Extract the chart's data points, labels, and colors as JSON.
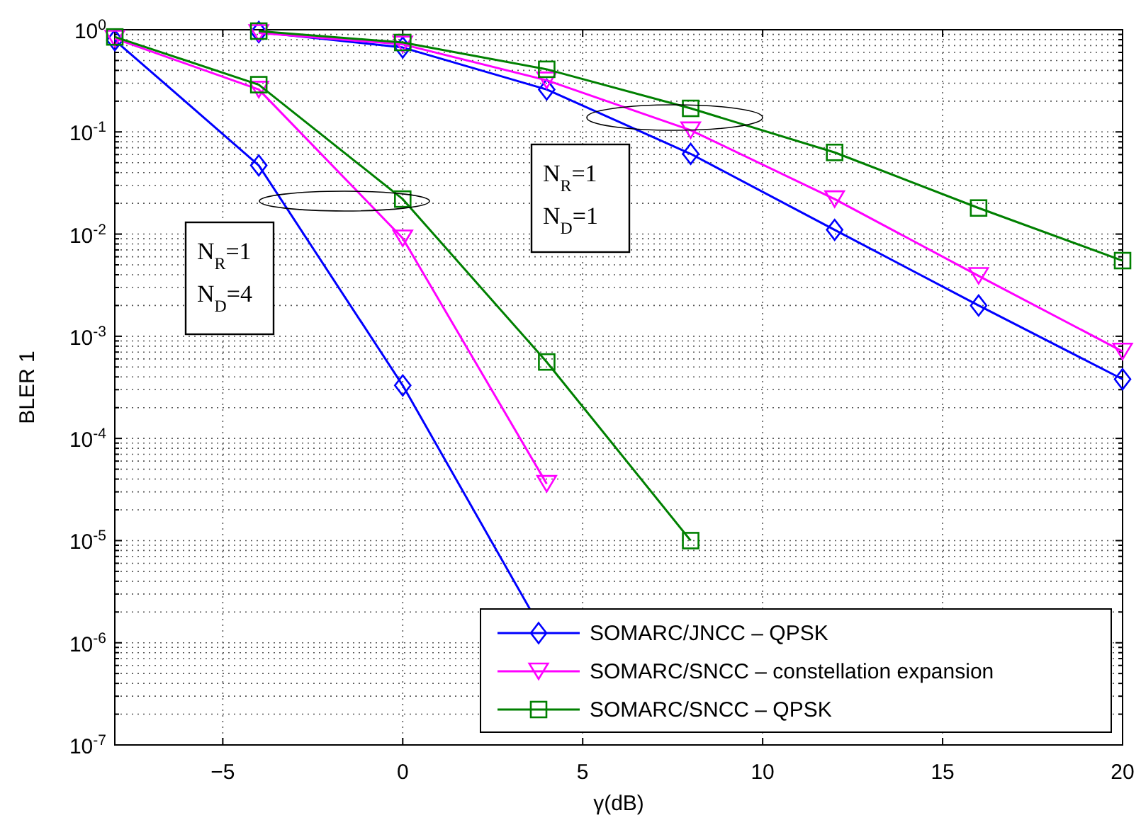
{
  "chart_data": {
    "type": "line",
    "xlabel": "γ(dB)",
    "ylabel": "BLER 1",
    "log": "y",
    "grid": true,
    "legend": "bottom right",
    "xlim": [
      -8,
      20
    ],
    "xticks": [
      -5,
      0,
      5,
      10,
      15,
      20
    ],
    "ylim": [
      1e-07,
      1
    ],
    "yticks": [
      {
        "value": 1e-07,
        "label": "10$^{-7}$"
      },
      {
        "value": 1e-06,
        "label": "10$^{-6}$"
      },
      {
        "value": 1e-05,
        "label": "10$^{-5}$"
      },
      {
        "value": 0.0001,
        "label": "10$^{-4}$"
      },
      {
        "value": 0.001,
        "label": "10$^{-3}$"
      },
      {
        "value": 0.01,
        "label": "10$^{-2}$"
      },
      {
        "value": 0.1,
        "label": "10$^{-1}$"
      },
      {
        "value": 1,
        "label": "10$^{0}$"
      }
    ],
    "annotations": [
      "N$_{R}$=1\nN$_{D}$=4",
      "N$_{R}$=1\nN$_{D}$=1"
    ],
    "series": [
      {
        "name": "SOMARC/JNCC – QPSK",
        "color": "#0000ff",
        "marker": "diamond",
        "x": [
          -8,
          -4,
          0,
          4
        ],
        "values": [
          0.79,
          0.047,
          0.00033,
          1.1e-06
        ]
      },
      {
        "name": "SOMARC/SNCC – constellation expansion",
        "color": "#ff00ff",
        "marker": "triangle",
        "x": [
          -8,
          -4,
          0,
          4
        ],
        "values": [
          0.82,
          0.26,
          0.0091,
          3.6e-05
        ]
      },
      {
        "name": "SOMARC/SNCC – QPSK",
        "color": "#008000",
        "marker": "square",
        "x": [
          -8,
          -4,
          0,
          4,
          8
        ],
        "values": [
          0.85,
          0.29,
          0.022,
          0.00056,
          1e-05
        ]
      },
      {
        "color": "#0000ff",
        "marker": "diamond",
        "x": [
          -4,
          0,
          4,
          8,
          12,
          16,
          20
        ],
        "values": [
          0.95,
          0.67,
          0.26,
          0.061,
          0.011,
          0.002,
          0.00038
        ]
      },
      {
        "color": "#ff00ff",
        "marker": "triangle",
        "x": [
          -4,
          0,
          4,
          8,
          12,
          16,
          20
        ],
        "values": [
          0.93,
          0.72,
          0.32,
          0.104,
          0.022,
          0.0039,
          0.00071
        ]
      },
      {
        "color": "#008000",
        "marker": "square",
        "x": [
          -4,
          0,
          4,
          8,
          12,
          16,
          20
        ],
        "values": [
          0.97,
          0.75,
          0.41,
          0.17,
          0.063,
          0.018,
          0.0055
        ]
      }
    ]
  }
}
